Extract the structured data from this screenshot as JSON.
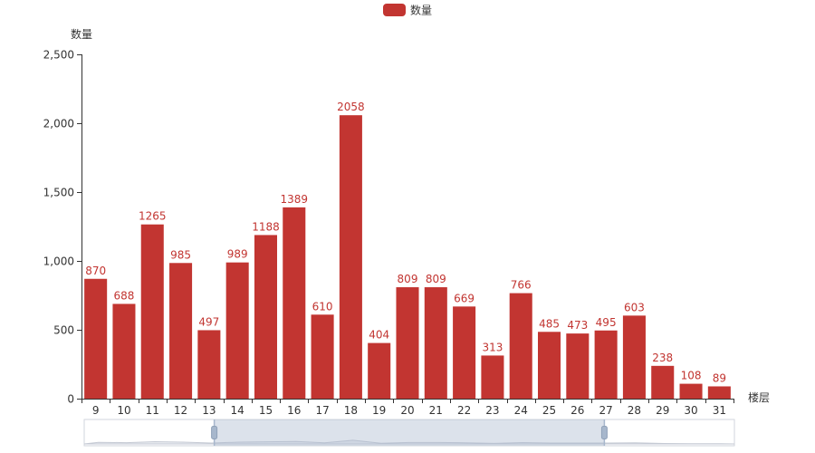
{
  "chart_data": {
    "type": "bar",
    "legend": {
      "name": "数量",
      "position": "top-center"
    },
    "categories": [
      "9",
      "10",
      "11",
      "12",
      "13",
      "14",
      "15",
      "16",
      "17",
      "18",
      "19",
      "20",
      "21",
      "22",
      "23",
      "24",
      "25",
      "26",
      "27",
      "28",
      "29",
      "30",
      "31"
    ],
    "series": [
      {
        "name": "数量",
        "values": [
          870,
          688,
          1265,
          985,
          497,
          989,
          1188,
          1389,
          610,
          2058,
          404,
          809,
          809,
          669,
          313,
          766,
          485,
          473,
          495,
          603,
          238,
          108,
          89
        ]
      }
    ],
    "xlabel": "楼层",
    "ylabel": "数量",
    "ylim": [
      0,
      2500
    ],
    "yticks": [
      0,
      500,
      1000,
      1500,
      2000,
      2500
    ],
    "ytick_labels": [
      "0",
      "500",
      "1,000",
      "1,500",
      "2,000",
      "2,500"
    ],
    "grid": false,
    "data_labels": true,
    "colors": {
      "bar": "#c23531",
      "label": "#c23531",
      "axis": "#333333"
    },
    "datazoom": {
      "type": "slider",
      "start_fraction": 0.2,
      "end_fraction": 0.8
    }
  }
}
